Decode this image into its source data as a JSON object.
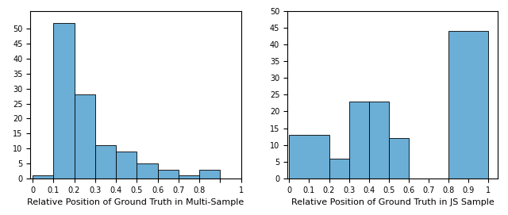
{
  "chart_data": [
    {
      "type": "histogram",
      "xlabel": "Relative Position of Ground Truth in Multi-Sample",
      "bins": [
        0,
        0.1,
        0.2,
        0.3,
        0.4,
        0.5,
        0.6,
        0.7,
        0.8,
        0.9
      ],
      "counts": [
        1,
        52,
        28,
        11,
        9,
        5,
        3,
        1,
        3
      ],
      "color": "#6baed6",
      "xlim": [
        -0.01,
        1.0
      ],
      "xticks": [
        0,
        0.1,
        0.2,
        0.3,
        0.4,
        0.5,
        0.6,
        0.7,
        0.8,
        {
          "value": 0.9,
          "label": ""
        },
        1
      ],
      "ylim": [
        0,
        56
      ],
      "yticks": [
        0,
        5,
        10,
        15,
        20,
        25,
        30,
        35,
        40,
        45,
        50
      ]
    },
    {
      "type": "histogram",
      "xlabel": "Relative Position of Ground Truth in JS Sample",
      "bins": [
        0,
        0.2,
        0.3,
        0.4,
        0.5,
        0.6,
        0.8,
        1
      ],
      "counts": [
        13,
        6,
        23,
        23,
        12,
        null,
        44
      ],
      "color": "#6baed6",
      "xlim": [
        -0.01,
        1.05
      ],
      "xticks": [
        0,
        0.1,
        0.2,
        0.3,
        0.4,
        0.5,
        0.6,
        0.7,
        0.8,
        0.9,
        1
      ],
      "ylim": [
        0,
        50
      ],
      "yticks": [
        0,
        5,
        10,
        15,
        20,
        25,
        30,
        35,
        40,
        45,
        50
      ]
    }
  ]
}
